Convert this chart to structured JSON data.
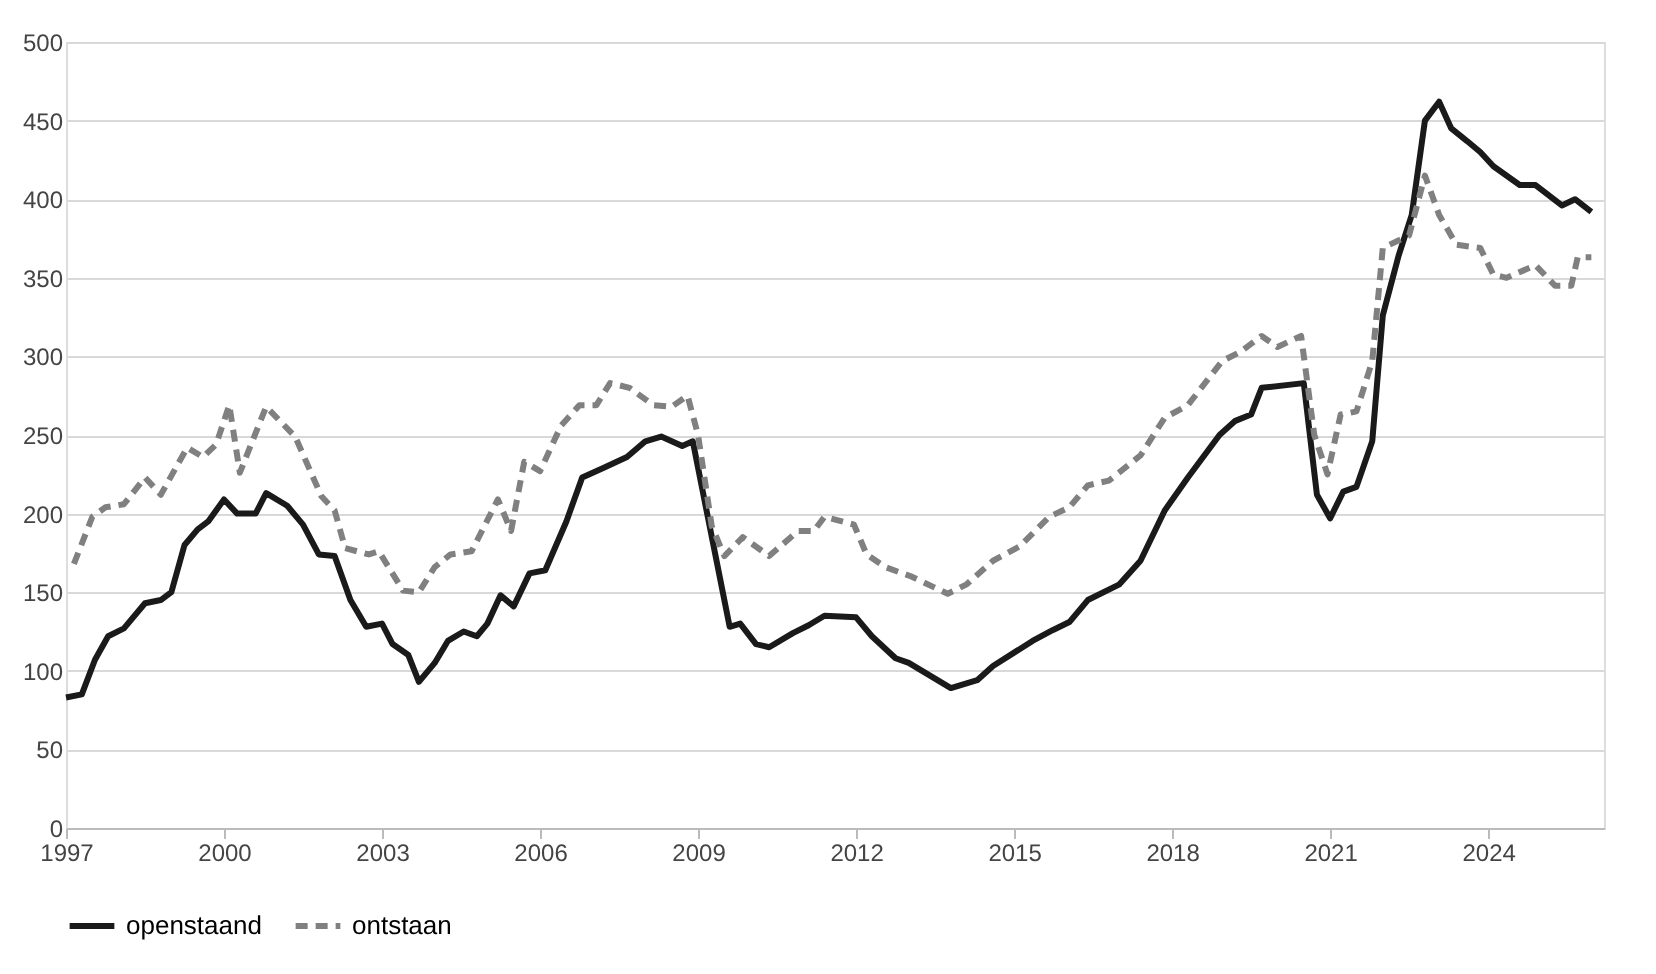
{
  "chart_data": {
    "type": "line",
    "xlim": [
      1997,
      2026.2
    ],
    "xticks": [
      1997,
      2000,
      2003,
      2006,
      2009,
      2012,
      2015,
      2018,
      2021,
      2024
    ],
    "ylim": [
      0,
      500
    ],
    "yticks": [
      0,
      50,
      100,
      150,
      200,
      250,
      300,
      350,
      400,
      450,
      500
    ],
    "grid": "y",
    "legend": "bottom",
    "marker": "none",
    "series": [
      {
        "name": "openstaand",
        "color": "#1a1a1a",
        "line_style": "solid",
        "x": [
          1997.0,
          1997.3,
          1997.55,
          1997.8,
          1998.1,
          1998.5,
          1998.8,
          1999.0,
          1999.25,
          1999.5,
          1999.7,
          2000.0,
          2000.25,
          2000.6,
          2000.8,
          2001.2,
          2001.5,
          2001.8,
          2002.1,
          2002.4,
          2002.7,
          2003.0,
          2003.2,
          2003.5,
          2003.7,
          2004.0,
          2004.25,
          2004.55,
          2004.8,
          2005.0,
          2005.25,
          2005.5,
          2005.8,
          2006.1,
          2006.5,
          2006.8,
          2007.2,
          2007.65,
          2008.0,
          2008.3,
          2008.7,
          2008.9,
          2009.6,
          2009.8,
          2010.1,
          2010.35,
          2010.8,
          2011.1,
          2011.4,
          2012.0,
          2012.3,
          2012.75,
          2013.0,
          2013.8,
          2014.3,
          2014.6,
          2015.35,
          2015.74,
          2016.05,
          2016.4,
          2017.0,
          2017.4,
          2017.86,
          2018.3,
          2018.9,
          2019.2,
          2019.5,
          2019.7,
          2020.5,
          2020.75,
          2021.0,
          2021.25,
          2021.5,
          2021.8,
          2022.0,
          2022.3,
          2022.55,
          2022.8,
          2023.07,
          2023.3,
          2023.6,
          2023.85,
          2024.1,
          2024.6,
          2024.9,
          2025.4,
          2025.65,
          2025.96
        ],
        "values": [
          83,
          85,
          107,
          122,
          127,
          143,
          145,
          150,
          180,
          190,
          195,
          209,
          200,
          200,
          213,
          205,
          193,
          174,
          173,
          145,
          128,
          130,
          117,
          110,
          93,
          105,
          119,
          125,
          122,
          130,
          148,
          141,
          162,
          164,
          195,
          223,
          229,
          236,
          246,
          249,
          243,
          246,
          128,
          130,
          117,
          115,
          124,
          129,
          135,
          134,
          122,
          108,
          105,
          89,
          94,
          103,
          119,
          126,
          131,
          145,
          155,
          170,
          202,
          223,
          250,
          259,
          263,
          280,
          283,
          212,
          197,
          214,
          217,
          246,
          326,
          364,
          390,
          450,
          462,
          445,
          437,
          430,
          421,
          409,
          409,
          396,
          400,
          392
        ]
      },
      {
        "name": "ontstaan",
        "color": "#808080",
        "line_style": "dashed",
        "x": [
          1997.15,
          1997.5,
          1997.75,
          1998.1,
          1998.5,
          1998.8,
          1999.3,
          1999.6,
          1999.85,
          2000.1,
          2000.3,
          2000.8,
          2001.35,
          2001.85,
          2002.1,
          2002.3,
          2002.75,
          2002.94,
          2003.4,
          2003.7,
          2004.0,
          2004.3,
          2004.7,
          2005.2,
          2005.45,
          2005.7,
          2006.0,
          2006.4,
          2006.75,
          2007.07,
          2007.33,
          2007.7,
          2008.15,
          2008.5,
          2008.8,
          2009.0,
          2009.26,
          2009.5,
          2009.85,
          2010.35,
          2010.9,
          2011.2,
          2011.4,
          2011.96,
          2012.2,
          2012.55,
          2013.05,
          2013.74,
          2014.1,
          2014.6,
          2015.1,
          2015.67,
          2016.05,
          2016.4,
          2016.8,
          2017.4,
          2017.86,
          2018.3,
          2018.95,
          2019.3,
          2019.7,
          2020.0,
          2020.45,
          2020.7,
          2020.95,
          2021.2,
          2021.5,
          2021.8,
          2022.0,
          2022.5,
          2022.8,
          2023.07,
          2023.4,
          2023.85,
          2024.1,
          2024.35,
          2024.9,
          2025.27,
          2025.58,
          2025.7,
          2025.96
        ],
        "values": [
          168,
          198,
          204,
          206,
          223,
          212,
          242,
          236,
          244,
          269,
          226,
          268,
          249,
          211,
          202,
          178,
          174,
          176,
          151,
          150,
          166,
          174,
          176,
          209,
          189,
          233,
          227,
          256,
          269,
          269,
          283,
          280,
          269,
          268,
          275,
          250,
          192,
          173,
          185,
          173,
          189,
          189,
          198,
          193,
          174,
          166,
          160,
          149,
          155,
          170,
          179,
          198,
          204,
          218,
          221,
          237,
          261,
          269,
          297,
          303,
          313,
          306,
          313,
          250,
          225,
          263,
          265,
          297,
          369,
          377,
          415,
          390,
          371,
          369,
          352,
          350,
          358,
          345,
          345,
          363,
          363
        ]
      }
    ]
  }
}
